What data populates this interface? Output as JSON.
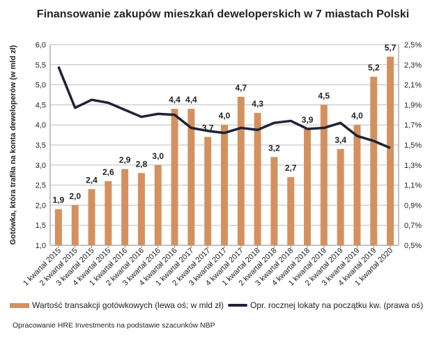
{
  "chart_data": {
    "type": "bar",
    "title": "Finansowanie zakupów mieszkań deweloperskich w 7 miastach Polski",
    "ylabel": "Gotówka, która trafiła na konta deweloperów (w mld zł)",
    "xlabel": "",
    "ylim": [
      1.0,
      6.0
    ],
    "y2lim": [
      0.5,
      2.5
    ],
    "yticks": [
      "1,0",
      "1,5",
      "2,0",
      "2,5",
      "3,0",
      "3,5",
      "4,0",
      "4,5",
      "5,0",
      "5,5",
      "6,0"
    ],
    "y2ticks": [
      "0,5%",
      "0,7%",
      "0,9%",
      "1,1%",
      "1,3%",
      "1,5%",
      "1,7%",
      "1,9%",
      "2,1%",
      "2,3%",
      "2,5%"
    ],
    "grid": true,
    "legend_placement": "bottom",
    "categories": [
      "1 kwartał 2015",
      "2 kwartał 2015",
      "3 kwartał 2015",
      "4 kwartał 2015",
      "1 kwartał 2016",
      "2 kwartał 2016",
      "3 kwartał 2016",
      "4 kwartał 2016",
      "1 kwartał 2017",
      "2 kwartał 2017",
      "3 kwartał 2017",
      "4 kwartał 2017",
      "1 kwartał 2018",
      "2 kwartał 2018",
      "3 kwartał 2018",
      "4 kwartał 2018",
      "1 kwartał 2019",
      "2 kwartał 2019",
      "3 kwartał 2019",
      "4 kwartał 2019",
      "1 kwartał 2020"
    ],
    "series": [
      {
        "name": "Wartość transakcji gotówkowych (lewa oś; w mld zł)",
        "type": "bar",
        "axis": "left",
        "color": "#D4915F",
        "values": [
          1.9,
          2.0,
          2.4,
          2.6,
          2.9,
          2.8,
          3.0,
          4.4,
          4.4,
          3.7,
          4.0,
          4.7,
          4.3,
          3.2,
          2.7,
          3.9,
          4.5,
          3.4,
          4.0,
          5.2,
          5.7
        ],
        "labels": [
          "1,9",
          "2,0",
          "2,4",
          "2,6",
          "2,9",
          "2,8",
          "3,0",
          "4,4",
          "4,4",
          "3,7",
          "4,0",
          "4,7",
          "4,3",
          "3,2",
          "2,7",
          "3,9",
          "4,5",
          "3,4",
          "4,0",
          "5,2",
          "5,7"
        ]
      },
      {
        "name": "Opr. rocznej lokaty na początku kw. (prawa oś)",
        "type": "line",
        "axis": "right",
        "color": "#1F2235",
        "values": [
          2.28,
          1.87,
          1.95,
          1.92,
          1.85,
          1.78,
          1.81,
          1.8,
          1.67,
          1.64,
          1.62,
          1.67,
          1.65,
          1.72,
          1.74,
          1.66,
          1.67,
          1.72,
          1.59,
          1.54,
          1.47
        ]
      }
    ]
  },
  "source": "Opracowanie HRE Investments na podstawie szacunków NBP"
}
